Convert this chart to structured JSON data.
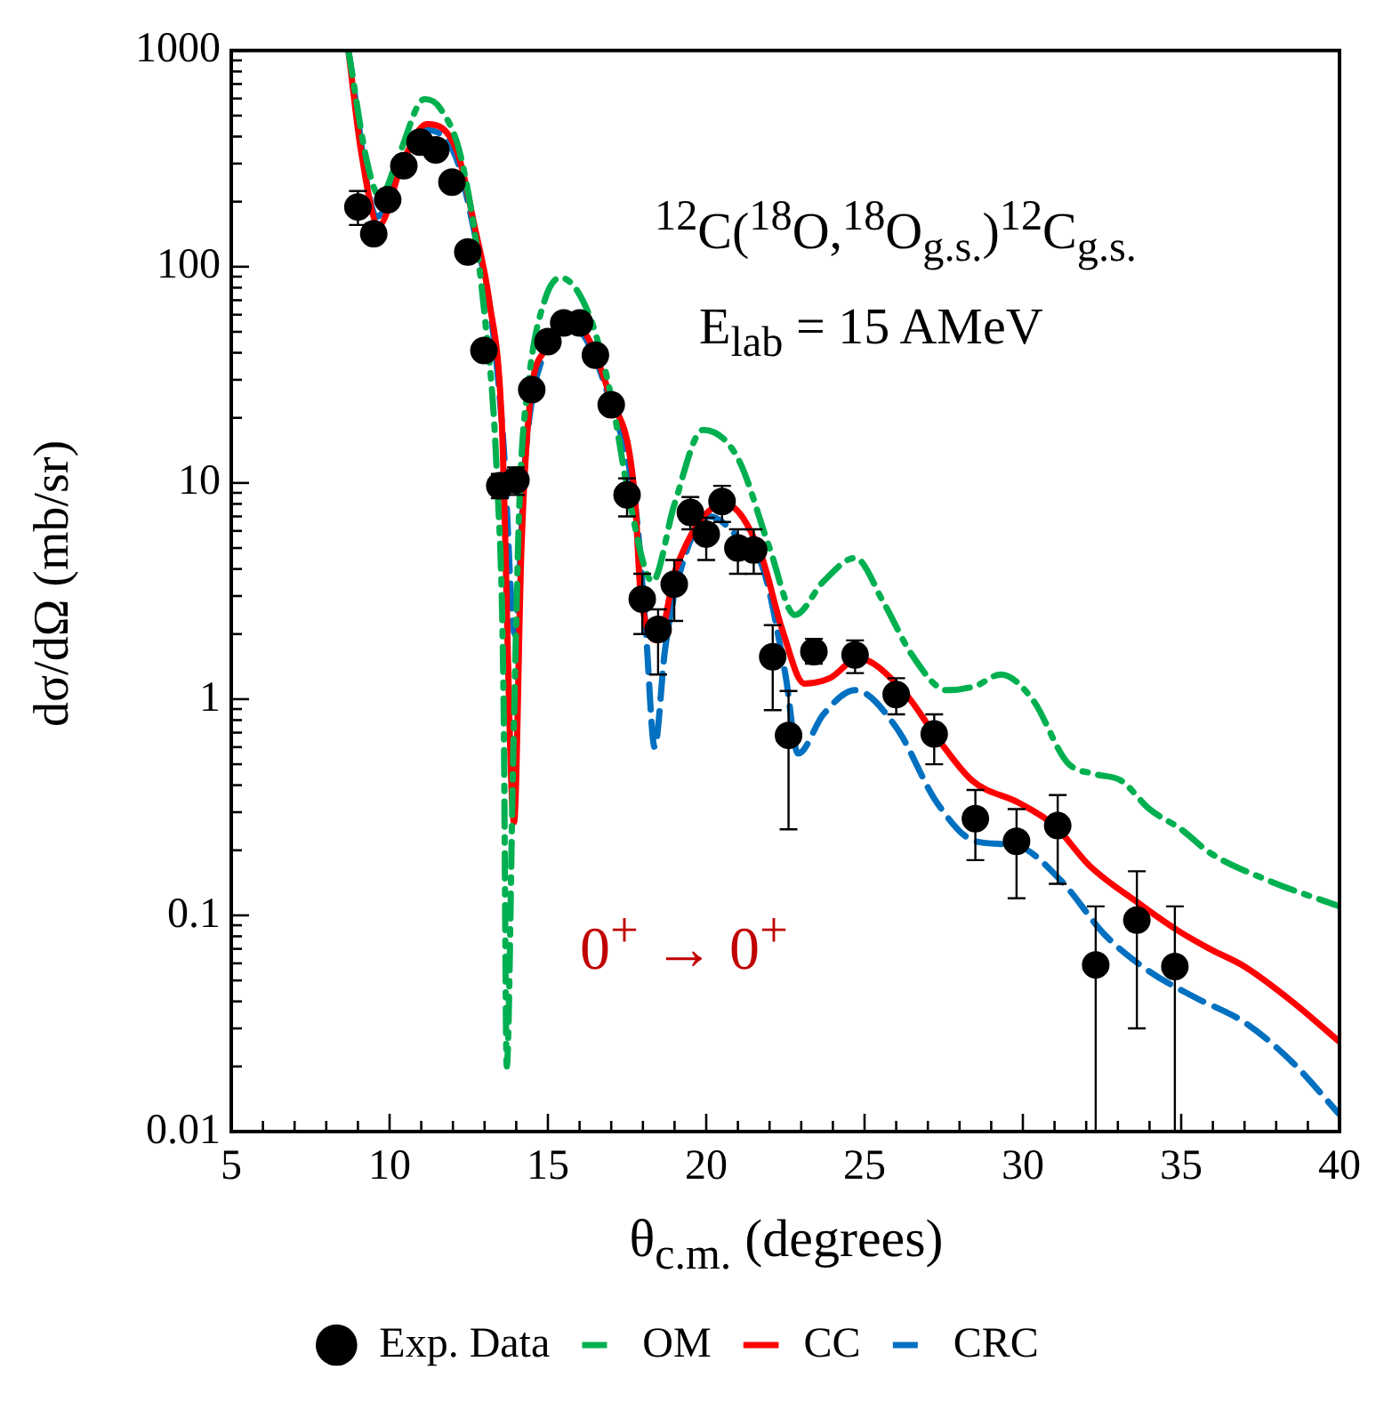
{
  "chart_data": {
    "type": "line",
    "xlabel": "θ$_{c.m.}$ (degrees)",
    "ylabel": "dσ/dΩ (mb/sr)",
    "xlim": [
      5,
      40
    ],
    "ylim": [
      0.01,
      1000
    ],
    "log": "y",
    "legend": "bottom",
    "xticks": [
      5,
      {
        "value": 6,
        "label": null
      },
      {
        "value": 7,
        "label": null
      },
      {
        "value": 8,
        "label": null
      },
      {
        "value": 9,
        "label": null
      },
      10,
      {
        "value": 11,
        "label": null
      },
      {
        "value": 12,
        "label": null
      },
      {
        "value": 13,
        "label": null
      },
      {
        "value": 14,
        "label": null
      },
      15,
      {
        "value": 16,
        "label": null
      },
      {
        "value": 17,
        "label": null
      },
      {
        "value": 18,
        "label": null
      },
      {
        "value": 19,
        "label": null
      },
      20,
      {
        "value": 21,
        "label": null
      },
      {
        "value": 22,
        "label": null
      },
      {
        "value": 23,
        "label": null
      },
      {
        "value": 24,
        "label": null
      },
      25,
      {
        "value": 26,
        "label": null
      },
      {
        "value": 27,
        "label": null
      },
      {
        "value": 28,
        "label": null
      },
      {
        "value": 29,
        "label": null
      },
      30,
      {
        "value": 31,
        "label": null
      },
      {
        "value": 32,
        "label": null
      },
      {
        "value": 33,
        "label": null
      },
      {
        "value": 34,
        "label": null
      },
      35,
      {
        "value": 36,
        "label": null
      },
      {
        "value": 37,
        "label": null
      },
      {
        "value": 38,
        "label": null
      },
      {
        "value": 39,
        "label": null
      },
      40
    ],
    "yticks": [
      0.01,
      {
        "value": 0.02,
        "label": null
      },
      {
        "value": 0.03,
        "label": null
      },
      {
        "value": 0.04,
        "label": null
      },
      {
        "value": 0.05,
        "label": null
      },
      {
        "value": 0.06,
        "label": null
      },
      {
        "value": 0.07,
        "label": null
      },
      {
        "value": 0.08,
        "label": null
      },
      {
        "value": 0.09,
        "label": null
      },
      0.1,
      {
        "value": 0.2,
        "label": null
      },
      {
        "value": 0.3,
        "label": null
      },
      {
        "value": 0.4,
        "label": null
      },
      {
        "value": 0.5,
        "label": null
      },
      {
        "value": 0.6,
        "label": null
      },
      {
        "value": 0.7,
        "label": null
      },
      {
        "value": 0.8,
        "label": null
      },
      {
        "value": 0.9,
        "label": null
      },
      1,
      {
        "value": 2,
        "label": null
      },
      {
        "value": 3,
        "label": null
      },
      {
        "value": 4,
        "label": null
      },
      {
        "value": 5,
        "label": null
      },
      {
        "value": 6,
        "label": null
      },
      {
        "value": 7,
        "label": null
      },
      {
        "value": 8,
        "label": null
      },
      {
        "value": 9,
        "label": null
      },
      10,
      {
        "value": 20,
        "label": null
      },
      {
        "value": 30,
        "label": null
      },
      {
        "value": 40,
        "label": null
      },
      {
        "value": 50,
        "label": null
      },
      {
        "value": 60,
        "label": null
      },
      {
        "value": 70,
        "label": null
      },
      {
        "value": 80,
        "label": null
      },
      {
        "value": 90,
        "label": null
      },
      100,
      {
        "value": 200,
        "label": null
      },
      {
        "value": 300,
        "label": null
      },
      {
        "value": 400,
        "label": null
      },
      {
        "value": 500,
        "label": null
      },
      {
        "value": 600,
        "label": null
      },
      {
        "value": 700,
        "label": null
      },
      {
        "value": 800,
        "label": null
      },
      {
        "value": 900,
        "label": null
      },
      1000
    ],
    "annotations": [
      "$^{12}$C($^{18}$O,$^{18}$O$_{g.s.}$)$^{12}$C$_{g.s.}$",
      "E$_{lab}$ = 15 AMeV",
      "0$^{+}$ → 0$^{+}$"
    ],
    "series": [
      {
        "name": "Exp. Data",
        "type": "scatter",
        "marker": "circle",
        "color": "#000000",
        "x": [
          9.0,
          9.5,
          9.94,
          10.45,
          10.96,
          11.46,
          11.97,
          12.47,
          12.98,
          13.48,
          13.99,
          14.49,
          15.0,
          15.5,
          16.0,
          16.5,
          17.0,
          17.5,
          17.98,
          18.48,
          18.99,
          19.5,
          20.0,
          20.5,
          21.0,
          21.5,
          22.1,
          22.6,
          23.4,
          24.7,
          26.0,
          27.2,
          28.5,
          29.8,
          31.1,
          32.3,
          33.6,
          34.8
        ],
        "values": [
          189,
          142,
          204,
          293,
          377,
          347,
          246,
          117,
          41,
          9.7,
          10.3,
          27,
          45,
          55,
          55,
          39,
          23,
          8.8,
          2.9,
          2.1,
          3.4,
          7.3,
          5.8,
          8.2,
          5.0,
          4.9,
          1.57,
          0.68,
          1.66,
          1.6,
          1.05,
          0.69,
          0.28,
          0.22,
          0.26,
          0.059,
          0.095,
          0.058
        ],
        "errors": [
          [
            156,
            224
          ],
          [
            130,
            158
          ],
          null,
          null,
          null,
          null,
          null,
          null,
          null,
          [
            8.5,
            11
          ],
          [
            8.8,
            11.8
          ],
          null,
          null,
          null,
          null,
          null,
          null,
          [
            7,
            10.5
          ],
          [
            2.0,
            3.8
          ],
          [
            1.3,
            2.6
          ],
          [
            2.3,
            4.4
          ],
          [
            6.1,
            8.6
          ],
          [
            4.4,
            6.9
          ],
          [
            6.6,
            9.7
          ],
          [
            3.8,
            6.1
          ],
          [
            3.8,
            6.1
          ],
          [
            0.89,
            2.2
          ],
          [
            0.25,
            1.09
          ],
          [
            1.46,
            1.9
          ],
          [
            1.32,
            1.87
          ],
          [
            0.85,
            1.25
          ],
          [
            0.5,
            0.85
          ],
          [
            0.18,
            0.38
          ],
          [
            0.12,
            0.31
          ],
          [
            0.14,
            0.36
          ],
          [
            0.01,
            0.11
          ],
          [
            0.03,
            0.16
          ],
          [
            0.01,
            0.11
          ]
        ]
      },
      {
        "name": "OM",
        "type": "line",
        "marker": "none",
        "line_style": "dashdot",
        "color": "#00b050",
        "x": [
          8.7,
          9.3,
          9.7,
          10.3,
          11.1,
          11.6,
          12.3,
          13.0,
          13.4,
          13.6,
          13.7,
          13.9,
          14.1,
          14.4,
          14.9,
          15.4,
          16.3,
          17.0,
          17.6,
          18.3,
          19.0,
          19.9,
          21.0,
          22.0,
          22.8,
          23.7,
          24.7,
          25.6,
          26.5,
          27.6,
          28.5,
          29.3,
          30.3,
          31.4,
          32.3,
          33.1,
          34.0,
          35.0,
          35.9,
          37.75,
          40
        ],
        "values": [
          1000,
          300,
          210,
          330,
          596,
          540,
          300,
          60,
          10,
          1,
          0.02,
          0.5,
          8,
          30,
          70,
          89,
          60,
          25,
          8,
          3.5,
          8,
          17.6,
          13,
          5,
          2.45,
          3.5,
          4.5,
          2.8,
          1.6,
          1.1,
          1.15,
          1.3,
          1.0,
          0.51,
          0.45,
          0.42,
          0.31,
          0.25,
          0.195,
          0.145,
          0.11
        ]
      },
      {
        "name": "CC",
        "type": "line",
        "marker": "none",
        "line_style": "solid",
        "color": "#ff0000",
        "x": [
          8.7,
          9.1,
          9.66,
          10.4,
          11.18,
          12.13,
          12.7,
          13.15,
          13.54,
          13.93,
          14.16,
          14.4,
          14.94,
          15.85,
          16.97,
          17.75,
          17.92,
          18.48,
          19.04,
          20.6,
          21.7,
          22.4,
          23.1,
          23.9,
          24.8,
          26.2,
          27.3,
          28.4,
          29.9,
          31.0,
          32.1,
          33.65,
          34.9,
          35.9,
          37.0,
          38.5,
          40
        ],
        "values": [
          1000,
          342,
          155,
          300,
          457,
          342,
          150,
          69,
          19.6,
          0.27,
          4.8,
          21,
          42,
          54,
          25,
          8.5,
          3.2,
          1.87,
          4.0,
          8.0,
          4.8,
          2.1,
          1.18,
          1.25,
          1.54,
          1.1,
          0.66,
          0.42,
          0.33,
          0.26,
          0.17,
          0.114,
          0.085,
          0.07,
          0.058,
          0.04,
          0.026
        ]
      },
      {
        "name": "CRC",
        "type": "line",
        "marker": "none",
        "line_style": "dashed",
        "color": "#0070c0",
        "x": [
          8.7,
          9.6,
          10.3,
          11.1,
          12.1,
          12.7,
          13.2,
          13.6,
          13.95,
          14.3,
          14.9,
          15.8,
          17.0,
          17.8,
          18.1,
          18.37,
          18.7,
          19.2,
          20.1,
          21.2,
          21.8,
          22.5,
          22.9,
          23.7,
          24.7,
          26.0,
          27.3,
          28.5,
          29.8,
          31.2,
          32.6,
          34.0,
          35.4,
          37.0,
          38.5,
          40
        ],
        "values": [
          1000,
          170,
          280,
          430,
          320,
          140,
          60,
          15,
          2,
          14,
          40,
          52,
          23,
          7,
          2.0,
          0.6,
          1.7,
          4,
          7.0,
          5.2,
          4.0,
          1.3,
          0.56,
          0.85,
          1.1,
          0.74,
          0.33,
          0.22,
          0.21,
          0.145,
          0.081,
          0.055,
          0.042,
          0.032,
          0.021,
          0.012
        ]
      }
    ]
  }
}
